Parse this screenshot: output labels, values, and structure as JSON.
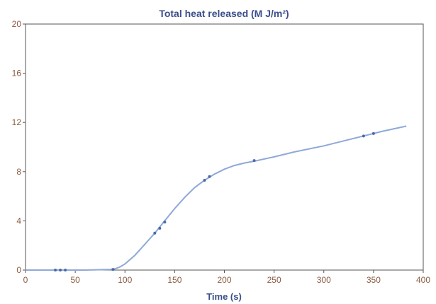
{
  "chart_data": {
    "type": "line",
    "title": "Total heat released (M J/m²)",
    "xlabel": "Time (s)",
    "ylabel": "",
    "xlim": [
      0,
      400
    ],
    "ylim": [
      0,
      20
    ],
    "x_ticks": [
      0,
      50,
      100,
      150,
      200,
      250,
      300,
      350,
      400
    ],
    "y_ticks": [
      0,
      4,
      8,
      12,
      16,
      20
    ],
    "grid": false,
    "legend": "none",
    "colors": {
      "line": "#8fa8d8",
      "points": "#4a6aa8",
      "title": "#3a4f8a",
      "tick_labels": "#8a5a40"
    },
    "series": [
      {
        "x": [
          0,
          30,
          40,
          60,
          85,
          90,
          95,
          100,
          110,
          120,
          130,
          140,
          150,
          160,
          170,
          180,
          190,
          200,
          210,
          220,
          230,
          250,
          270,
          300,
          320,
          340,
          360,
          383
        ],
        "y": [
          0,
          0,
          0,
          0,
          0.05,
          0.1,
          0.25,
          0.5,
          1.2,
          2.1,
          3.0,
          4.0,
          5.0,
          5.9,
          6.7,
          7.3,
          7.8,
          8.2,
          8.5,
          8.7,
          8.85,
          9.2,
          9.6,
          10.1,
          10.5,
          10.9,
          11.3,
          11.7
        ]
      }
    ],
    "markers": {
      "x": [
        30,
        35,
        40,
        88,
        130,
        135,
        140,
        180,
        185,
        230,
        340,
        350
      ],
      "y": [
        0,
        0,
        0,
        0.05,
        3.0,
        3.4,
        3.9,
        7.3,
        7.6,
        8.9,
        10.9,
        11.1
      ]
    }
  }
}
